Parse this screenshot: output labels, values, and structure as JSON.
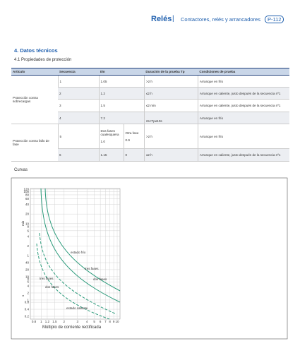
{
  "header": {
    "section": "Relés",
    "separator": "|",
    "subtitle": "Contactores, relés y arrancadores",
    "page": "P-112"
  },
  "heading": "4. Datos técnicos",
  "subheading": "4.1 Propiedades de protección",
  "table": {
    "columns": [
      "Artículo",
      "Secuencia",
      "I/In",
      "Duración de la prueba Tp",
      "Condiciones de prueba"
    ],
    "groups": [
      "Protección contra sobrecargas",
      "Protección contra fallo de fase"
    ],
    "rows": [
      [
        "1",
        "1.05",
        ">2 h",
        "Arranque en frío"
      ],
      [
        "2",
        "1.2",
        "≤2 h",
        "Arranque en caliente, justo después de la secuencia nº1"
      ],
      [
        "3",
        "1.5",
        "≤2 min",
        "Arranque en caliente, justo después de la secuencia nº1"
      ],
      [
        "4",
        "7.2",
        "2s<Tp≤10s",
        "Arranque en frío"
      ],
      [
        "5",
        "1.0",
        ">2 h",
        "Arranque en frío"
      ],
      [
        "6",
        "1.15",
        "≤2 h",
        "Arranque en caliente, justo después de la secuencia nº1"
      ]
    ],
    "phase_headers": [
      "Dos fases cualesquiera",
      "Otra fase"
    ],
    "other_phase": [
      "0.9",
      "0"
    ]
  },
  "curves": {
    "title": "Curvas",
    "x_label": "Múltiplo de corriente rectificada",
    "xticks": [
      0.8,
      1,
      1.2,
      1.5,
      2,
      3,
      4,
      5,
      6,
      7,
      8,
      9,
      10
    ],
    "min_unit": "min",
    "sec_unit": "s",
    "min_ticks": [
      120,
      100,
      80,
      60,
      40,
      20,
      10,
      8,
      6,
      4,
      2,
      1
    ],
    "sec_ticks": [
      40,
      20,
      10,
      8,
      6,
      4,
      2,
      1,
      0.8,
      0.4,
      0.2
    ],
    "labels": [
      "estado frío",
      "tres fases",
      "dos fases",
      "tres fases",
      "dos fases",
      "estado caliente"
    ]
  }
}
